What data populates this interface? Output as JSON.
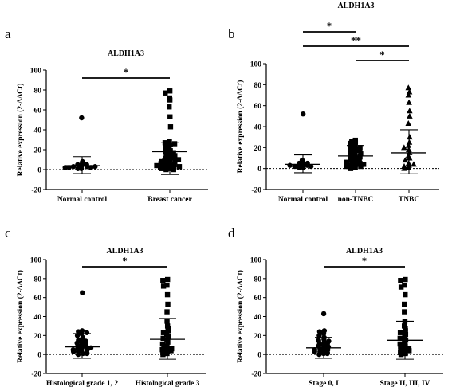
{
  "chart_data": [
    {
      "panel": "a",
      "type": "scatter",
      "title": "ALDH1A3",
      "ylabel": "Relative expression (2-ΔΔCt)",
      "ylim": [
        -20,
        100
      ],
      "yticks": [
        -20,
        0,
        20,
        40,
        60,
        80,
        100
      ],
      "categories": [
        "Normal control",
        "Breast cancer"
      ],
      "series": [
        {
          "marker": "circle",
          "mean": 4,
          "sd_upper": 13,
          "sd_lower": -4,
          "values": [
            52,
            8,
            6,
            5,
            4,
            4,
            3,
            3,
            2,
            2,
            1,
            1,
            5,
            3,
            2
          ]
        },
        {
          "marker": "square",
          "mean": 18,
          "sd_upper": 27,
          "sd_lower": -5,
          "values": [
            79,
            77,
            72,
            70,
            63,
            53,
            43,
            28,
            27,
            26,
            25,
            24,
            22,
            20,
            19,
            18,
            17,
            16,
            15,
            14,
            12,
            11,
            10,
            9,
            8,
            7,
            6,
            5,
            4,
            3,
            2,
            1,
            0,
            0,
            1,
            2,
            3,
            4,
            6,
            8,
            10,
            12
          ]
        }
      ],
      "comparisons": [
        {
          "from": 0,
          "to": 1,
          "label": "*"
        }
      ]
    },
    {
      "panel": "b",
      "type": "scatter",
      "title": "ALDH1A3",
      "ylabel": "Relative expression (2-ΔΔCt)",
      "ylim": [
        -20,
        100
      ],
      "yticks": [
        -20,
        0,
        20,
        40,
        60,
        80,
        100
      ],
      "categories": [
        "Normal control",
        "non-TNBC",
        "TNBC"
      ],
      "series": [
        {
          "marker": "circle",
          "mean": 4,
          "sd_upper": 13,
          "sd_lower": -4,
          "values": [
            52,
            8,
            6,
            5,
            4,
            3,
            3,
            2,
            2,
            1,
            1,
            5,
            3
          ]
        },
        {
          "marker": "square",
          "mean": 12,
          "sd_upper": 22,
          "sd_lower": 2,
          "values": [
            27,
            26,
            25,
            24,
            22,
            21,
            20,
            19,
            18,
            17,
            16,
            15,
            14,
            13,
            12,
            11,
            10,
            9,
            8,
            7,
            6,
            5,
            4,
            3,
            2,
            1,
            0,
            2,
            4,
            6
          ]
        },
        {
          "marker": "triangle",
          "mean": 15,
          "sd_upper": 37,
          "sd_lower": -5,
          "values": [
            77,
            73,
            70,
            63,
            55,
            50,
            43,
            30,
            25,
            22,
            20,
            18,
            15,
            12,
            10,
            8,
            5,
            3,
            1,
            0,
            2,
            4
          ]
        }
      ],
      "comparisons": [
        {
          "from": 0,
          "to": 1,
          "label": "*"
        },
        {
          "from": 0,
          "to": 2,
          "label": "**"
        },
        {
          "from": 1,
          "to": 2,
          "label": "*"
        }
      ]
    },
    {
      "panel": "c",
      "type": "scatter",
      "title": "ALDH1A3",
      "ylabel": "Relative expression (2-ΔΔCt)",
      "ylim": [
        -20,
        100
      ],
      "yticks": [
        -20,
        0,
        20,
        40,
        60,
        80,
        100
      ],
      "categories": [
        "Histological grade 1, 2",
        "Histological grade 3"
      ],
      "series": [
        {
          "marker": "circle",
          "mean": 8,
          "sd_upper": 22,
          "sd_lower": -4,
          "values": [
            65,
            25,
            24,
            23,
            22,
            20,
            18,
            16,
            15,
            14,
            13,
            12,
            11,
            10,
            9,
            8,
            7,
            6,
            5,
            4,
            3,
            2,
            1,
            0,
            1,
            3,
            5,
            7
          ]
        },
        {
          "marker": "square",
          "mean": 16,
          "sd_upper": 38,
          "sd_lower": -5,
          "values": [
            79,
            78,
            73,
            72,
            63,
            53,
            45,
            35,
            30,
            27,
            25,
            23,
            21,
            19,
            17,
            15,
            13,
            11,
            9,
            7,
            5,
            3,
            1,
            0,
            2,
            4,
            6,
            8
          ]
        }
      ],
      "comparisons": [
        {
          "from": 0,
          "to": 1,
          "label": "*"
        }
      ]
    },
    {
      "panel": "d",
      "type": "scatter",
      "title": "ALDH1A3",
      "ylabel": "Relative expression (2-ΔΔCt)",
      "ylim": [
        -20,
        100
      ],
      "yticks": [
        -20,
        0,
        20,
        40,
        60,
        80,
        100
      ],
      "categories": [
        "Stage 0, I",
        "Stage II, III, IV"
      ],
      "series": [
        {
          "marker": "circle",
          "mean": 7,
          "sd_upper": 18,
          "sd_lower": -4,
          "values": [
            43,
            25,
            24,
            22,
            20,
            18,
            16,
            15,
            14,
            13,
            12,
            11,
            10,
            9,
            8,
            7,
            6,
            5,
            4,
            3,
            2,
            1,
            0,
            1,
            3,
            5
          ]
        },
        {
          "marker": "square",
          "mean": 15,
          "sd_upper": 35,
          "sd_lower": -5,
          "values": [
            79,
            78,
            73,
            71,
            63,
            53,
            45,
            35,
            30,
            27,
            25,
            23,
            21,
            19,
            17,
            15,
            13,
            11,
            9,
            7,
            5,
            3,
            1,
            0,
            2,
            4,
            6,
            8
          ]
        }
      ],
      "comparisons": [
        {
          "from": 0,
          "to": 1,
          "label": "*"
        }
      ]
    }
  ]
}
